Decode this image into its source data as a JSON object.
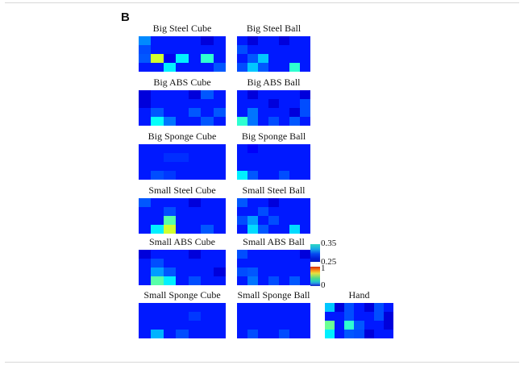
{
  "panel_label": "B",
  "figure": {
    "background": "#ffffff",
    "border_line_color": "#d8d8d8",
    "base_cell_color": "#0019ff"
  },
  "colorbar": {
    "upper": {
      "top_label": "0.35",
      "bottom_label": "0.25",
      "top_color": "#2ed8c4",
      "bottom_color": "#0018c0"
    },
    "lower": {
      "top_label": "1",
      "bottom_label": "0",
      "colormap": "jet"
    }
  },
  "chart_data": [
    {
      "type": "heatmap",
      "title": "Big Steel Cube",
      "rows": 4,
      "cols": 7,
      "colormap": "jet",
      "values": [
        [
          0.26,
          0.15,
          0.15,
          0.15,
          0.15,
          0.09,
          0.15
        ],
        [
          0.2,
          0.15,
          0.15,
          0.15,
          0.15,
          0.15,
          0.15
        ],
        [
          0.21,
          0.58,
          0.11,
          0.36,
          0.15,
          0.42,
          0.15
        ],
        [
          0.15,
          0.15,
          0.36,
          0.15,
          0.15,
          0.15,
          0.21
        ]
      ]
    },
    {
      "type": "heatmap",
      "title": "Big Steel Ball",
      "rows": 4,
      "cols": 7,
      "colormap": "jet",
      "values": [
        [
          0.15,
          0.09,
          0.15,
          0.15,
          0.09,
          0.15,
          0.15
        ],
        [
          0.2,
          0.15,
          0.15,
          0.15,
          0.15,
          0.15,
          0.15
        ],
        [
          0.15,
          0.21,
          0.32,
          0.15,
          0.15,
          0.15,
          0.15
        ],
        [
          0.2,
          0.32,
          0.21,
          0.15,
          0.15,
          0.42,
          0.15
        ]
      ]
    },
    {
      "type": "heatmap",
      "title": "Big ABS Cube",
      "rows": 4,
      "cols": 7,
      "colormap": "jet",
      "values": [
        [
          0.09,
          0.15,
          0.15,
          0.15,
          0.09,
          0.21,
          0.15
        ],
        [
          0.09,
          0.15,
          0.15,
          0.15,
          0.15,
          0.15,
          0.15
        ],
        [
          0.15,
          0.21,
          0.15,
          0.15,
          0.21,
          0.15,
          0.21
        ],
        [
          0.15,
          0.38,
          0.24,
          0.15,
          0.15,
          0.21,
          0.15
        ]
      ]
    },
    {
      "type": "heatmap",
      "title": "Big ABS Ball",
      "rows": 4,
      "cols": 7,
      "colormap": "jet",
      "values": [
        [
          0.15,
          0.09,
          0.15,
          0.15,
          0.15,
          0.15,
          0.09
        ],
        [
          0.15,
          0.15,
          0.15,
          0.09,
          0.15,
          0.15,
          0.2
        ],
        [
          0.15,
          0.24,
          0.15,
          0.15,
          0.15,
          0.09,
          0.2
        ],
        [
          0.42,
          0.24,
          0.15,
          0.2,
          0.15,
          0.21,
          0.15
        ]
      ]
    },
    {
      "type": "heatmap",
      "title": "Big Sponge Cube",
      "rows": 4,
      "cols": 7,
      "colormap": "jet",
      "values": [
        [
          0.15,
          0.15,
          0.15,
          0.15,
          0.15,
          0.15,
          0.15
        ],
        [
          0.15,
          0.15,
          0.17,
          0.17,
          0.15,
          0.15,
          0.15
        ],
        [
          0.15,
          0.15,
          0.15,
          0.15,
          0.15,
          0.15,
          0.15
        ],
        [
          0.15,
          0.2,
          0.18,
          0.15,
          0.15,
          0.15,
          0.15
        ]
      ]
    },
    {
      "type": "heatmap",
      "title": "Big Sponge Ball",
      "rows": 4,
      "cols": 7,
      "colormap": "jet",
      "values": [
        [
          0.15,
          0.12,
          0.15,
          0.15,
          0.15,
          0.15,
          0.15
        ],
        [
          0.15,
          0.15,
          0.15,
          0.15,
          0.15,
          0.15,
          0.15
        ],
        [
          0.15,
          0.15,
          0.15,
          0.15,
          0.15,
          0.15,
          0.15
        ],
        [
          0.36,
          0.21,
          0.15,
          0.15,
          0.2,
          0.15,
          0.15
        ]
      ]
    },
    {
      "type": "heatmap",
      "title": "Small Steel Cube",
      "rows": 4,
      "cols": 7,
      "colormap": "jet",
      "values": [
        [
          0.21,
          0.15,
          0.15,
          0.15,
          0.09,
          0.15,
          0.15
        ],
        [
          0.15,
          0.15,
          0.2,
          0.15,
          0.15,
          0.15,
          0.15
        ],
        [
          0.15,
          0.15,
          0.46,
          0.15,
          0.15,
          0.15,
          0.15
        ],
        [
          0.15,
          0.36,
          0.58,
          0.15,
          0.15,
          0.21,
          0.15
        ]
      ]
    },
    {
      "type": "heatmap",
      "title": "Small Steel Ball",
      "rows": 4,
      "cols": 7,
      "colormap": "jet",
      "values": [
        [
          0.21,
          0.15,
          0.15,
          0.09,
          0.15,
          0.15,
          0.15
        ],
        [
          0.15,
          0.15,
          0.2,
          0.15,
          0.15,
          0.15,
          0.15
        ],
        [
          0.2,
          0.28,
          0.15,
          0.2,
          0.15,
          0.15,
          0.15
        ],
        [
          0.15,
          0.34,
          0.21,
          0.15,
          0.15,
          0.34,
          0.15
        ]
      ]
    },
    {
      "type": "heatmap",
      "title": "Small ABS Cube",
      "rows": 4,
      "cols": 7,
      "colormap": "jet",
      "values": [
        [
          0.09,
          0.15,
          0.15,
          0.15,
          0.09,
          0.15,
          0.15
        ],
        [
          0.15,
          0.2,
          0.15,
          0.15,
          0.15,
          0.15,
          0.15
        ],
        [
          0.15,
          0.28,
          0.21,
          0.15,
          0.15,
          0.15,
          0.09
        ],
        [
          0.15,
          0.46,
          0.36,
          0.15,
          0.2,
          0.15,
          0.15
        ]
      ]
    },
    {
      "type": "heatmap",
      "title": "Small ABS Ball",
      "rows": 4,
      "cols": 7,
      "colormap": "jet",
      "values": [
        [
          0.2,
          0.15,
          0.15,
          0.15,
          0.15,
          0.15,
          0.09
        ],
        [
          0.15,
          0.15,
          0.15,
          0.15,
          0.15,
          0.15,
          0.15
        ],
        [
          0.2,
          0.21,
          0.15,
          0.15,
          0.15,
          0.15,
          0.15
        ],
        [
          0.15,
          0.24,
          0.15,
          0.2,
          0.15,
          0.21,
          0.15
        ]
      ]
    },
    {
      "type": "heatmap",
      "title": "Small Sponge Cube",
      "rows": 4,
      "cols": 7,
      "colormap": "jet",
      "values": [
        [
          0.15,
          0.15,
          0.15,
          0.15,
          0.15,
          0.15,
          0.15
        ],
        [
          0.15,
          0.15,
          0.15,
          0.15,
          0.18,
          0.15,
          0.15
        ],
        [
          0.15,
          0.15,
          0.15,
          0.15,
          0.15,
          0.15,
          0.15
        ],
        [
          0.15,
          0.3,
          0.15,
          0.2,
          0.15,
          0.15,
          0.15
        ]
      ]
    },
    {
      "type": "heatmap",
      "title": "Small Sponge Ball",
      "rows": 4,
      "cols": 7,
      "colormap": "jet",
      "values": [
        [
          0.15,
          0.15,
          0.15,
          0.15,
          0.15,
          0.15,
          0.15
        ],
        [
          0.15,
          0.15,
          0.15,
          0.15,
          0.15,
          0.15,
          0.15
        ],
        [
          0.15,
          0.15,
          0.15,
          0.15,
          0.15,
          0.15,
          0.15
        ],
        [
          0.15,
          0.2,
          0.15,
          0.15,
          0.2,
          0.15,
          0.15
        ]
      ]
    },
    {
      "type": "heatmap",
      "title": "Hand",
      "rows": 4,
      "cols": 7,
      "colormap": "jet",
      "values": [
        [
          0.32,
          0.09,
          0.2,
          0.15,
          0.09,
          0.2,
          0.15
        ],
        [
          0.15,
          0.15,
          0.2,
          0.15,
          0.15,
          0.2,
          0.09
        ],
        [
          0.48,
          0.15,
          0.42,
          0.21,
          0.15,
          0.15,
          0.09
        ],
        [
          0.36,
          0.15,
          0.21,
          0.2,
          0.09,
          0.15,
          0.15
        ]
      ]
    }
  ]
}
